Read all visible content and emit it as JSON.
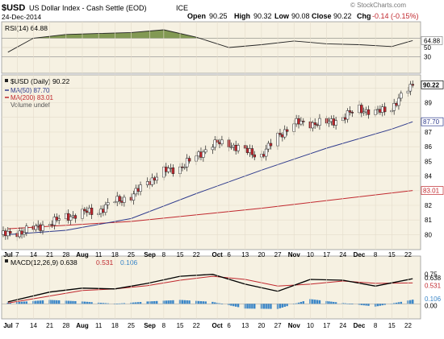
{
  "header": {
    "symbol": "$USD",
    "name": "US Dollar Index - Cash Settle (EOD)",
    "exchange": "ICE",
    "date": "24-Dec-2014",
    "open_label": "Open",
    "open": "90.25",
    "high_label": "High",
    "high": "90.32",
    "low_label": "Low",
    "low": "90.08",
    "close_label": "Close",
    "close": "90.22",
    "chg_label": "Chg",
    "chg": "-0.14 (-0.15%)",
    "watermark": "© StockCharts.com"
  },
  "colors": {
    "panel_bg": "#f6f1e2",
    "candle": "#c0272d",
    "ma50": "#2e3a8c",
    "ma200": "#c0272d",
    "rsi_fill": "#6d8a3a",
    "macd_line": "#000000",
    "macd_signal": "#c0272d",
    "macd_hist": "#3a86c8"
  },
  "chart_data": [
    {
      "type": "line",
      "panel": "RSI",
      "legend": "RSI(14) 64.88",
      "ylim": [
        0,
        100
      ],
      "tick_labels": [
        "64.88",
        "50",
        "30"
      ],
      "reference_levels": [
        70,
        30
      ],
      "x": [
        "Jul 3",
        "Jul 14",
        "Jul 28",
        "Aug 11",
        "Aug 25",
        "Sep 8",
        "Sep 22",
        "Oct 6",
        "Oct 20",
        "Nov 3",
        "Nov 17",
        "Dec 1",
        "Dec 15",
        "Dec 24"
      ],
      "values": [
        40,
        70,
        78,
        80,
        82,
        88,
        72,
        50,
        56,
        64,
        58,
        56,
        52,
        64.88
      ]
    },
    {
      "type": "candlestick",
      "panel": "Price",
      "legend": [
        "$USD (Daily) 90.22",
        "MA(50) 87.70",
        "MA(200) 83.01",
        "Volume undef"
      ],
      "ylim": [
        79.2,
        90.4
      ],
      "y_ticks": [
        80,
        81,
        82,
        83,
        84,
        85,
        86,
        87,
        88,
        89,
        90
      ],
      "y_tick_labels": [
        "80",
        "81",
        "82",
        "",
        "84",
        "85",
        "86",
        "87",
        "",
        "89",
        ""
      ],
      "value_tags": [
        "90.22",
        "87.70",
        "83.01"
      ],
      "x_tick_labels": [
        "Jul",
        "7",
        "14",
        "21",
        "28",
        "Aug",
        "11",
        "18",
        "25",
        "Sep",
        "8",
        "15",
        "22",
        "Oct",
        "6",
        "13",
        "20",
        "27",
        "Nov",
        "10",
        "17",
        "24",
        "Dec",
        "8",
        "15",
        "22"
      ],
      "series": [
        {
          "name": "$USD (Daily) 90.22",
          "x": [
            "Jul 3",
            "Jul 14",
            "Jul 21",
            "Jul 28",
            "Aug 4",
            "Aug 11",
            "Aug 18",
            "Aug 25",
            "Sep 1",
            "Sep 8",
            "Sep 15",
            "Sep 22",
            "Sep 29",
            "Oct 6",
            "Oct 13",
            "Oct 20",
            "Oct 27",
            "Nov 3",
            "Nov 10",
            "Nov 17",
            "Nov 24",
            "Dec 1",
            "Dec 8",
            "Dec 15",
            "Dec 24"
          ],
          "values": [
            80.0,
            80.4,
            80.8,
            81.2,
            81.5,
            81.6,
            82.3,
            82.6,
            83.6,
            84.3,
            84.6,
            85.3,
            86.2,
            86.2,
            85.7,
            85.4,
            86.7,
            87.6,
            87.6,
            87.6,
            88.0,
            88.6,
            88.3,
            88.7,
            90.22
          ]
        },
        {
          "name": "MA(50) 87.70",
          "x": [
            "Jul 3",
            "Jul 28",
            "Aug 25",
            "Sep 22",
            "Oct 20",
            "Nov 17",
            "Dec 15",
            "Dec 24"
          ],
          "values": [
            80.0,
            80.3,
            81.1,
            82.8,
            84.4,
            85.9,
            87.2,
            87.7
          ]
        },
        {
          "name": "MA(200) 83.01",
          "x": [
            "Jul 3",
            "Aug 25",
            "Oct 20",
            "Dec 24"
          ],
          "values": [
            80.4,
            80.9,
            81.8,
            83.01
          ]
        }
      ]
    },
    {
      "type": "line",
      "panel": "MACD",
      "legend": [
        "MACD(12,26,9) 0.638",
        "0.531",
        "0.106"
      ],
      "ylim": [
        -0.3,
        1.05
      ],
      "tick_labels": [
        "0.75",
        "0.638",
        "0.531",
        "0.106",
        "0.00"
      ],
      "x": [
        "Jul 3",
        "Jul 21",
        "Aug 4",
        "Aug 18",
        "Sep 1",
        "Sep 15",
        "Sep 29",
        "Oct 13",
        "Oct 27",
        "Nov 10",
        "Nov 24",
        "Dec 8",
        "Dec 24"
      ],
      "series": [
        {
          "name": "MACD(12,26,9) 0.638",
          "values": [
            0.05,
            0.3,
            0.4,
            0.38,
            0.52,
            0.7,
            0.75,
            0.5,
            0.32,
            0.62,
            0.6,
            0.45,
            0.638
          ]
        },
        {
          "name": "0.531",
          "values": [
            0.02,
            0.2,
            0.34,
            0.38,
            0.46,
            0.6,
            0.7,
            0.62,
            0.45,
            0.5,
            0.58,
            0.52,
            0.531
          ]
        },
        {
          "name": "0.106",
          "values": [
            0.03,
            0.1,
            0.06,
            0.0,
            0.06,
            0.1,
            0.05,
            -0.12,
            -0.13,
            0.12,
            0.02,
            -0.07,
            0.106
          ]
        }
      ]
    }
  ]
}
